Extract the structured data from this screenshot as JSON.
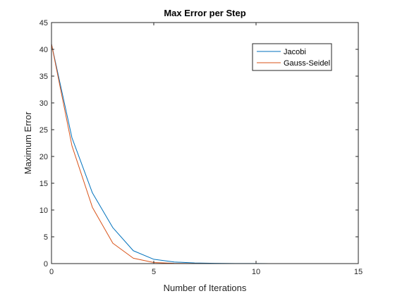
{
  "chart_data": {
    "type": "line",
    "title": "Max Error per Step",
    "xlabel": "Number of Iterations",
    "ylabel": "Maximum Error",
    "xlim": [
      0,
      15
    ],
    "ylim": [
      0,
      45
    ],
    "xticks": [
      0,
      5,
      10,
      15
    ],
    "yticks": [
      0,
      5,
      10,
      15,
      20,
      25,
      30,
      35,
      40,
      45
    ],
    "grid": false,
    "legend_position": "top-right",
    "x": [
      0,
      1,
      2,
      3,
      4,
      5,
      6,
      7,
      8,
      9,
      10,
      11,
      12,
      13,
      14,
      15
    ],
    "series": [
      {
        "name": "Jacobi",
        "color": "#0072BD",
        "values": [
          41.0,
          23.5,
          13.2,
          6.7,
          2.4,
          0.8,
          0.3,
          0.12,
          0.05,
          0.02,
          0.01,
          0.005,
          0.002,
          0.001,
          0.0005,
          0.0002
        ]
      },
      {
        "name": "Gauss-Seidel",
        "color": "#D95319",
        "values": [
          41.0,
          22.0,
          10.5,
          3.8,
          1.0,
          0.2,
          0.05,
          0.01,
          0.003,
          0.001,
          0.0003,
          0.0001,
          3e-05,
          1e-05,
          3e-06,
          1e-06
        ]
      }
    ]
  }
}
